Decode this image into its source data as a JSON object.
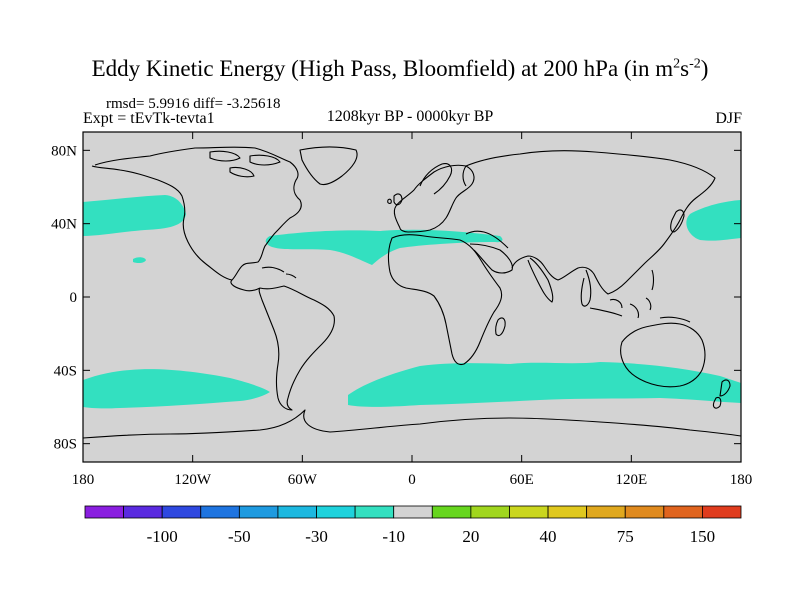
{
  "title": {
    "main": "Eddy Kinetic Energy (High Pass, Bloomfield) at 200 hPa (in m",
    "unit_m_exp": "2",
    "unit_s": "s",
    "unit_s_exp": "-2",
    "close": ")"
  },
  "stats": "rmsd= 5.9916 diff= -3.25618",
  "experiment": "Expt = tEvTk-tevta1",
  "period": "1208kyr BP - 0000kyr BP",
  "season": "DJF",
  "map": {
    "land_ocean_color": "#d3d3d3",
    "anomaly_color": "#33e0c0",
    "coast_color": "#000000",
    "lon_ticks": [
      {
        "value": -180,
        "label": "180"
      },
      {
        "value": -120,
        "label": "120W"
      },
      {
        "value": -60,
        "label": "60W"
      },
      {
        "value": 0,
        "label": "0"
      },
      {
        "value": 60,
        "label": "60E"
      },
      {
        "value": 120,
        "label": "120E"
      },
      {
        "value": 180,
        "label": "180"
      }
    ],
    "lat_ticks": [
      {
        "value": 80,
        "label": "80N"
      },
      {
        "value": 40,
        "label": "40N"
      },
      {
        "value": 0,
        "label": "0"
      },
      {
        "value": -40,
        "label": "40S"
      },
      {
        "value": -80,
        "label": "80S"
      }
    ]
  },
  "colorbar": {
    "colors": [
      "#8a1ee0",
      "#5a2ae0",
      "#2e48e0",
      "#1e74e0",
      "#1e9ae0",
      "#1cb8e0",
      "#1ed2dc",
      "#33e0c0",
      "#d3d3d3",
      "#66d61e",
      "#a0d61e",
      "#cad61e",
      "#e0c81e",
      "#e0a81e",
      "#e08a1e",
      "#e0641e",
      "#e03c1e"
    ],
    "labels": [
      {
        "boundary": 2,
        "text": "-100"
      },
      {
        "boundary": 4,
        "text": "-50"
      },
      {
        "boundary": 6,
        "text": "-30"
      },
      {
        "boundary": 8,
        "text": "-10"
      },
      {
        "boundary": 10,
        "text": "20"
      },
      {
        "boundary": 12,
        "text": "40"
      },
      {
        "boundary": 14,
        "text": "75"
      },
      {
        "boundary": 16,
        "text": "150"
      }
    ]
  }
}
